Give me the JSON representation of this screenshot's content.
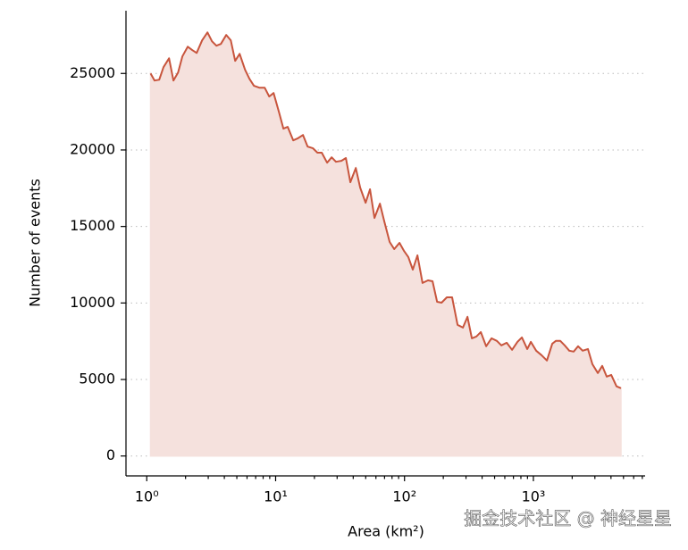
{
  "chart_data": {
    "type": "area",
    "x_label": "Area (km²)",
    "y_label": "Number of events",
    "watermark": "掘金技术社区 @ 神经星星",
    "color": "#c8553d",
    "fill_color": "#f5e1dd",
    "xscale": "log",
    "grid": true,
    "xlim": [
      0.69,
      7360
    ],
    "ylim": [
      -1300,
      29100
    ],
    "xticks": [
      {
        "value": 1,
        "label": "10⁰"
      },
      {
        "value": 10,
        "label": "10¹"
      },
      {
        "value": 100,
        "label": "10²"
      },
      {
        "value": 1000,
        "label": "10³"
      }
    ],
    "xminorticks": [
      2,
      3,
      4,
      5,
      6,
      7,
      8,
      9,
      20,
      30,
      40,
      50,
      60,
      70,
      80,
      90,
      200,
      300,
      400,
      500,
      600,
      700,
      800,
      900,
      2000,
      3000,
      4000,
      5000,
      6000,
      7000
    ],
    "yticks": [
      0,
      5000,
      10000,
      15000,
      20000,
      25000
    ],
    "x": [
      1.07,
      1.15,
      1.25,
      1.35,
      1.49,
      1.61,
      1.75,
      1.89,
      2.08,
      2.26,
      2.44,
      2.69,
      2.96,
      3.21,
      3.47,
      3.76,
      4.14,
      4.49,
      4.85,
      5.26,
      5.79,
      6.27,
      6.79,
      7.47,
      8.22,
      8.91,
      9.64,
      10.6,
      11.5,
      12.4,
      13.7,
      14.8,
      16.3,
      17.7,
      19.5,
      21.1,
      22.8,
      25.1,
      27.2,
      29.4,
      32.4,
      35.1,
      38.0,
      41.9,
      45.3,
      49.9,
      54.0,
      58.5,
      64.4,
      69.7,
      76.7,
      83.2,
      91.4,
      99.1,
      107,
      116,
      126,
      138,
      152,
      165,
      179,
      194,
      213,
      234,
      258,
      284,
      308,
      333,
      361,
      391,
      430,
      473,
      521,
      564,
      621,
      683,
      752,
      814,
      896,
      955,
      1052,
      1157,
      1274,
      1401,
      1494,
      1618,
      1750,
      1897,
      2055,
      2223,
      2410,
      2650,
      2871,
      3162,
      3420,
      3707,
      4018,
      4416,
      4786
    ],
    "values": [
      25000,
      24540,
      24590,
      25410,
      25990,
      24540,
      25060,
      26110,
      26750,
      26520,
      26340,
      27160,
      27680,
      27100,
      26810,
      26930,
      27510,
      27160,
      25820,
      26280,
      25240,
      24650,
      24190,
      24070,
      24070,
      23490,
      23720,
      22500,
      21390,
      21510,
      20630,
      20750,
      20980,
      20220,
      20110,
      19820,
      19820,
      19170,
      19520,
      19230,
      19290,
      19470,
      17890,
      18820,
      17540,
      16550,
      17430,
      15560,
      16490,
      15330,
      13990,
      13520,
      13930,
      13400,
      13000,
      12180,
      13110,
      11310,
      11480,
      11420,
      10080,
      10020,
      10370,
      10370,
      8570,
      8390,
      9090,
      7690,
      7810,
      8100,
      7170,
      7690,
      7520,
      7230,
      7400,
      6940,
      7460,
      7750,
      6990,
      7460,
      6880,
      6590,
      6240,
      7340,
      7520,
      7520,
      7230,
      6880,
      6820,
      7170,
      6880,
      6990,
      6000,
      5420,
      5890,
      5190,
      5300,
      4550,
      4430
    ]
  }
}
